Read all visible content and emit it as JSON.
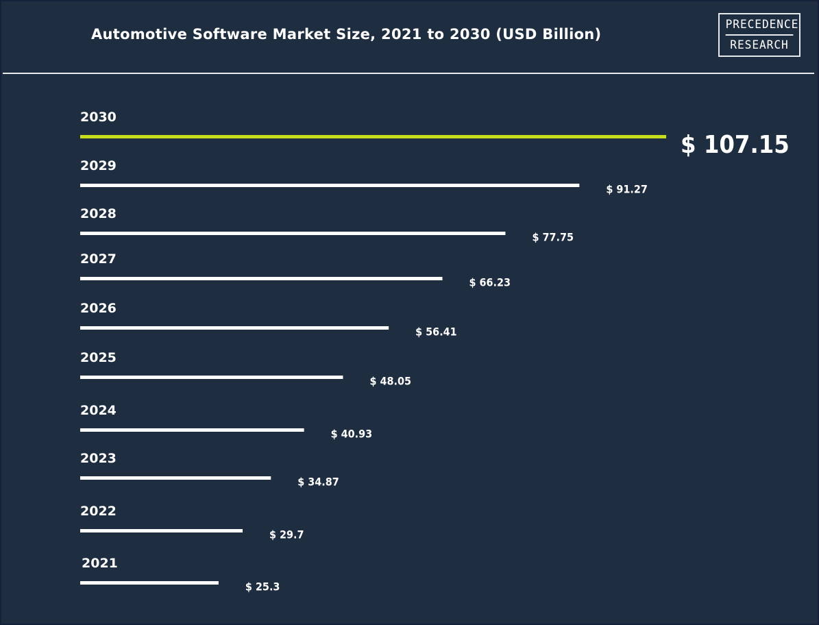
{
  "header": {
    "title": "Automotive Software Market Size, 2021 to 2030 (USD Billion)",
    "logo_line1": "PRECEDENCE",
    "logo_line2": "RESEARCH"
  },
  "colors": {
    "background": "#1e2d3f",
    "bar": "#ffffff",
    "highlight_bar": "#c8dc1e",
    "text": "#ffffff"
  },
  "chart_data": {
    "type": "bar",
    "orientation": "horizontal",
    "title": "Automotive Software Market Size, 2021 to 2030 (USD Billion)",
    "categories": [
      "2030",
      "2029",
      "2028",
      "2027",
      "2026",
      "2025",
      "2024",
      "2023",
      "2022",
      "2021"
    ],
    "values": [
      107.15,
      91.27,
      77.75,
      66.23,
      56.41,
      48.05,
      40.93,
      34.87,
      29.7,
      25.3
    ],
    "value_labels": [
      "$ 107.15",
      "$ 91.27",
      "$ 77.75",
      "$ 66.23",
      "$ 56.41",
      "$ 48.05",
      "$ 40.93",
      "$ 34.87",
      "$ 29.7",
      "$ 25.3"
    ],
    "highlight": "2030",
    "xlabel": "",
    "ylabel": "",
    "grid": false,
    "legend": "none"
  }
}
